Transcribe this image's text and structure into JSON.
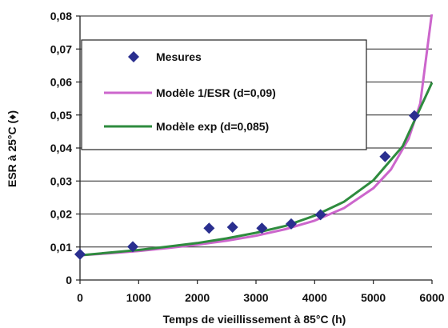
{
  "chart_data": {
    "type": "scatter",
    "xlabel": "Temps de vieillissement à 85°C (h)",
    "ylabel": "ESR à 25°C (♦)",
    "xlim": [
      0,
      6000
    ],
    "ylim": [
      0,
      0.08
    ],
    "x_ticks": [
      0,
      1000,
      2000,
      3000,
      4000,
      5000,
      6000
    ],
    "x_tick_labels": [
      "0",
      "1000",
      "2000",
      "3000",
      "4000",
      "5000",
      "6000"
    ],
    "y_ticks": [
      0,
      0.01,
      0.02,
      0.03,
      0.04,
      0.05,
      0.06,
      0.07,
      0.08
    ],
    "y_tick_labels": [
      "0",
      "0,01",
      "0,02",
      "0,03",
      "0,04",
      "0,05",
      "0,06",
      "0,07",
      "0,08"
    ],
    "grid": "horizontal",
    "legend_position": "top-left",
    "series": [
      {
        "name": "Mesures",
        "kind": "scatter",
        "marker": "diamond",
        "color": "#2a2f8f",
        "x": [
          0,
          900,
          2200,
          2600,
          3100,
          3600,
          4100,
          5200,
          5700
        ],
        "y": [
          0.0078,
          0.0101,
          0.0157,
          0.016,
          0.0157,
          0.017,
          0.0198,
          0.0374,
          0.0498
        ]
      },
      {
        "name": "Modèle 1/ESR (d=0,09)",
        "kind": "line",
        "color": "#cc66cc",
        "x": [
          0,
          500,
          1000,
          1500,
          2000,
          2500,
          3000,
          3500,
          4000,
          4500,
          5000,
          5300,
          5600,
          5800,
          6000
        ],
        "y": [
          0.0075,
          0.0081,
          0.0088,
          0.0097,
          0.0107,
          0.0119,
          0.0134,
          0.0154,
          0.018,
          0.0218,
          0.0278,
          0.0335,
          0.0428,
          0.0535,
          0.0812
        ]
      },
      {
        "name": "Modèle exp (d=0,085)",
        "kind": "line",
        "color": "#2e8b3e",
        "x": [
          0,
          500,
          1000,
          1500,
          2000,
          2500,
          3000,
          3500,
          4000,
          4500,
          5000,
          5500,
          6000
        ],
        "y": [
          0.0075,
          0.0083,
          0.0091,
          0.0101,
          0.0112,
          0.0126,
          0.0143,
          0.0164,
          0.0195,
          0.0237,
          0.0302,
          0.0405,
          0.0598
        ]
      }
    ]
  }
}
